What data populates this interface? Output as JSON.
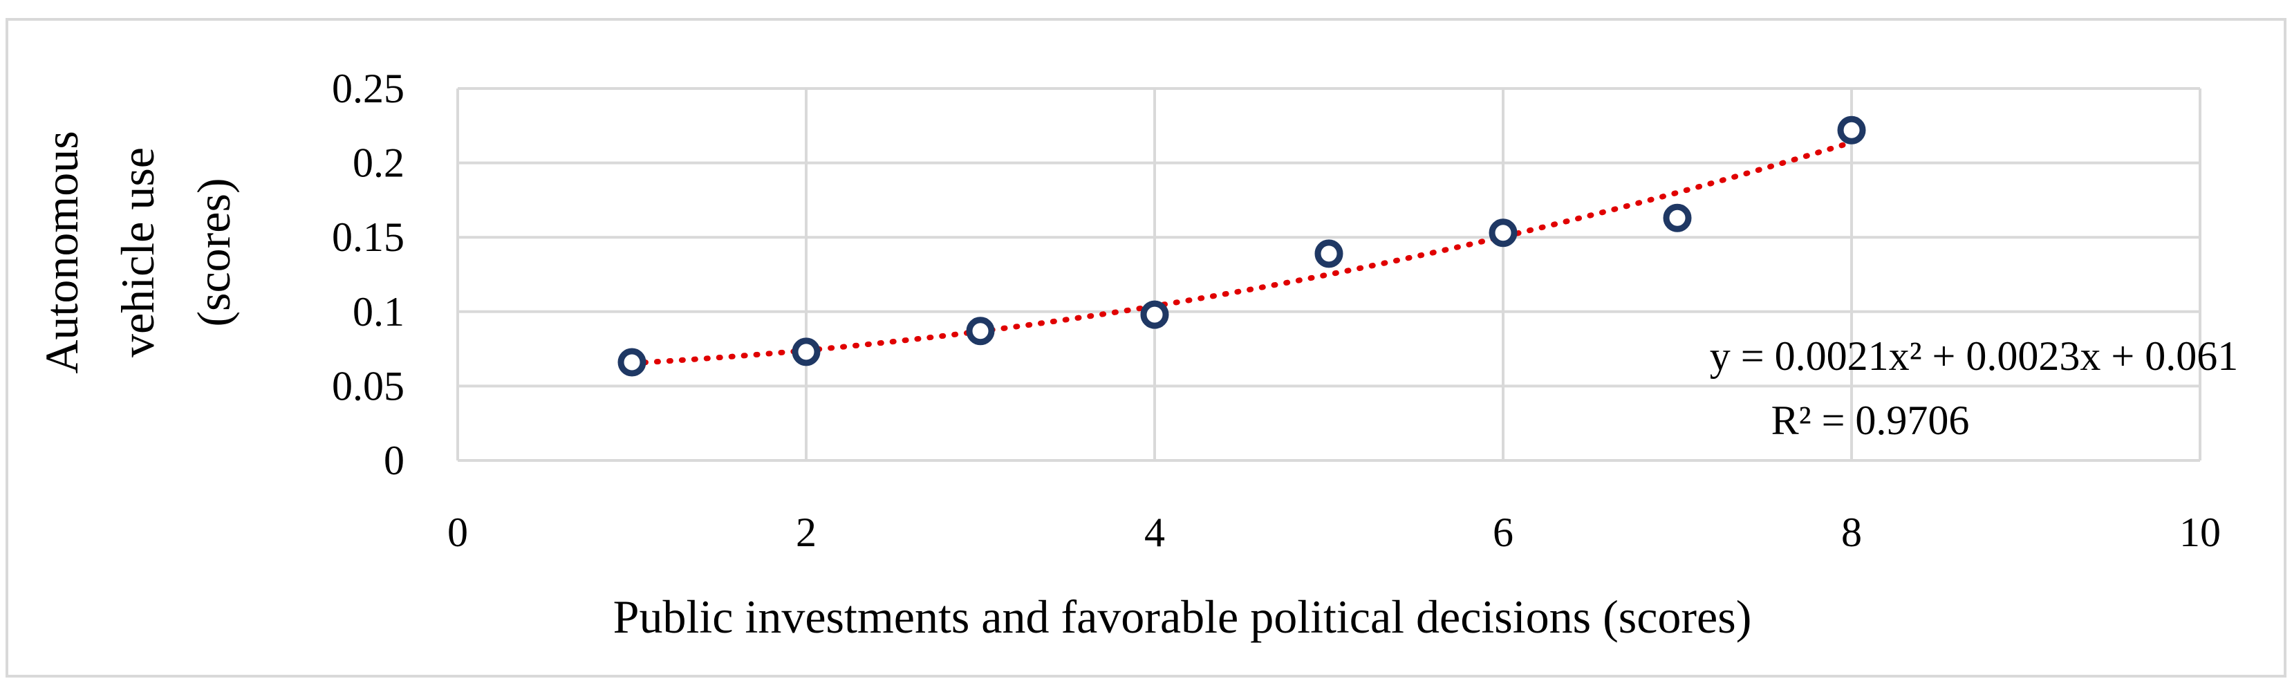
{
  "chart_data": {
    "type": "scatter",
    "xlabel": "Public investments and favorable political decisions (scores)",
    "ylabel_lines": [
      "Autonomous",
      "vehicle use",
      "(scores)"
    ],
    "xlim": [
      0,
      10
    ],
    "ylim": [
      0,
      0.25
    ],
    "x_ticks": [
      "0",
      "2",
      "4",
      "6",
      "8",
      "10"
    ],
    "y_ticks": [
      "0",
      "0.05",
      "0.1",
      "0.15",
      "0.2",
      "0.25"
    ],
    "x_tick_values": [
      0,
      2,
      4,
      6,
      8,
      10
    ],
    "y_tick_values": [
      0,
      0.05,
      0.1,
      0.15,
      0.2,
      0.25
    ],
    "grid": true,
    "series": [
      {
        "x": [
          1,
          2,
          3,
          4,
          5,
          6,
          7,
          8
        ],
        "y": [
          0.066,
          0.073,
          0.087,
          0.098,
          0.139,
          0.153,
          0.163,
          0.222
        ],
        "marker_color": "#1f3864"
      }
    ],
    "trendline": {
      "type": "polynomial",
      "coefficients": [
        0.0021,
        0.0023,
        0.061
      ],
      "x_range": [
        1,
        8
      ],
      "color": "#e00000",
      "equation": "y = 0.0021x² + 0.0023x + 0.061",
      "r_squared": "R² = 0.9706"
    }
  }
}
